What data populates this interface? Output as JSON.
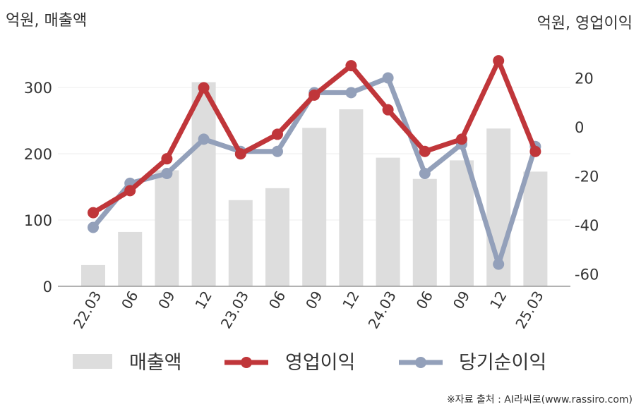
{
  "chart_data": {
    "type": "bar+line",
    "left_axis_title": "억원, 매출액",
    "right_axis_title": "억원, 영업이익",
    "categories": [
      "22.03",
      "06",
      "09",
      "12",
      "23.03",
      "06",
      "09",
      "12",
      "24.03",
      "06",
      "09",
      "12",
      "25.03"
    ],
    "bar_series": {
      "name": "매출액",
      "axis": "left",
      "color": "#dddddd",
      "values": [
        32,
        82,
        175,
        308,
        130,
        148,
        239,
        267,
        194,
        162,
        190,
        238,
        173
      ]
    },
    "line_series": [
      {
        "name": "영업이익",
        "axis": "right",
        "color": "#c0363a",
        "values": [
          -35,
          -26,
          -13,
          16,
          -11,
          -3,
          13,
          25,
          7,
          -10,
          -5,
          27,
          -10
        ]
      },
      {
        "name": "당기순이익",
        "axis": "right",
        "color": "#93a0ba",
        "values": [
          -41,
          -23,
          -19,
          -5,
          -10,
          -10,
          14,
          14,
          20,
          -19,
          -7,
          -56,
          -8
        ]
      }
    ],
    "left_axis": {
      "ticks": [
        0,
        100,
        200,
        300
      ],
      "range": [
        0,
        350
      ]
    },
    "right_axis": {
      "ticks": [
        20,
        0,
        -20,
        -40,
        -60
      ],
      "range": [
        -66,
        35
      ]
    },
    "grid": true,
    "legend_position": "bottom",
    "source": "※자료 출처 : AI라씨로(www.rassiro.com)"
  }
}
